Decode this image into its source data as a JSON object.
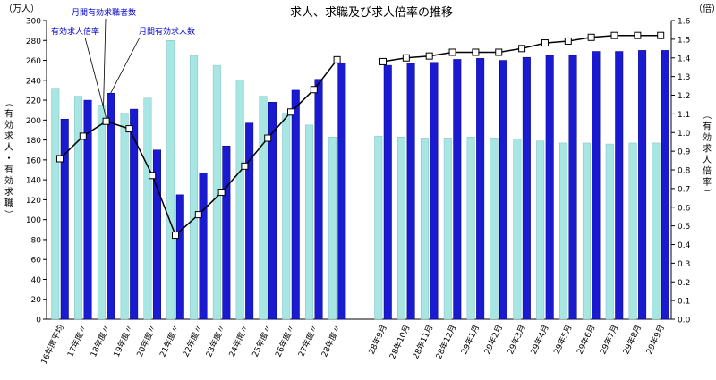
{
  "chart_data": {
    "type": "bar",
    "title": "求人、求職及び求人倍率の推移",
    "left_unit": "（万人）",
    "right_unit": "（倍）",
    "ylabel_left": "（有効求人・有効求職）",
    "ylabel_right": "（有効求人倍率）",
    "ylim_left": [
      0,
      300
    ],
    "ylim_right": [
      0,
      1.6
    ],
    "yticks_left": [
      "0",
      "20",
      "40",
      "60",
      "80",
      "100",
      "120",
      "140",
      "160",
      "180",
      "200",
      "220",
      "240",
      "260",
      "280",
      "300"
    ],
    "yticks_right": [
      "0.0",
      "0.1",
      "0.2",
      "0.3",
      "0.4",
      "0.5",
      "0.6",
      "0.7",
      "0.8",
      "0.9",
      "1.0",
      "1.1",
      "1.2",
      "1.3",
      "1.4",
      "1.5",
      "1.6"
    ],
    "grid": false,
    "categories": [
      "16年度平均",
      "17年度〃",
      "18年度〃",
      "19年度〃",
      "20年度〃",
      "21年度〃",
      "22年度〃",
      "23年度〃",
      "24年度〃",
      "25年度〃",
      "26年度〃",
      "27年度〃",
      "28年度〃",
      "28年9月",
      "28年10月",
      "28年11月",
      "28年12月",
      "29年1月",
      "29年2月",
      "29年3月",
      "29年4月",
      "29年5月",
      "29年6月",
      "29年7月",
      "29年8月",
      "29年9月"
    ],
    "series": [
      {
        "name": "月間有効求職者数",
        "type": "bar",
        "axis": "left",
        "color": "#a8e6e4",
        "values": [
          232,
          224,
          215,
          207,
          222,
          280,
          265,
          255,
          240,
          224,
          207,
          195,
          183,
          184,
          183,
          182,
          182,
          183,
          182,
          181,
          179,
          177,
          177,
          176,
          177,
          177
        ]
      },
      {
        "name": "月間有効求人数",
        "type": "bar",
        "axis": "left",
        "color": "#1a1ad0",
        "values": [
          201,
          220,
          227,
          211,
          170,
          125,
          147,
          174,
          197,
          218,
          230,
          241,
          257,
          255,
          257,
          258,
          261,
          262,
          260,
          263,
          265,
          265,
          269,
          269,
          270,
          270
        ]
      },
      {
        "name": "有効求人倍率",
        "type": "line",
        "axis": "right",
        "color": "#000000",
        "values": [
          0.86,
          0.98,
          1.06,
          1.02,
          0.77,
          0.45,
          0.56,
          0.68,
          0.82,
          0.97,
          1.11,
          1.23,
          1.39,
          1.38,
          1.4,
          1.41,
          1.43,
          1.43,
          1.43,
          1.45,
          1.48,
          1.49,
          1.51,
          1.52,
          1.52,
          1.52
        ]
      }
    ],
    "annotations": [
      {
        "text": "月間有効求職者数",
        "series": 0
      },
      {
        "text": "有効求人倍率",
        "series": 2
      },
      {
        "text": "月間有効求人数",
        "series": 1
      }
    ]
  }
}
